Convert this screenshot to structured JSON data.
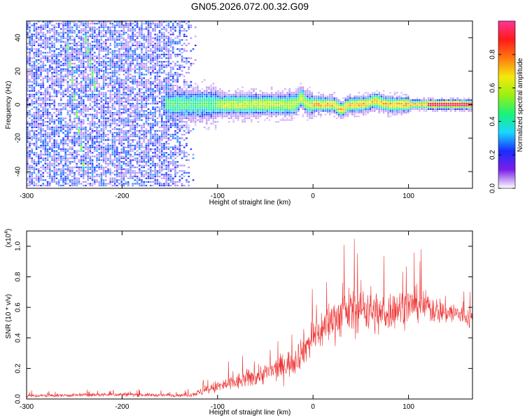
{
  "title": "GN05.2026.072.00.32.G09",
  "chart_data": [
    {
      "type": "heatmap",
      "xlabel": "Height of straight line (km)",
      "ylabel": "Frequency (Hz)",
      "xlim": [
        -300,
        167
      ],
      "ylim": [
        -50,
        50
      ],
      "xticks": [
        -300,
        -200,
        -100,
        0,
        100
      ],
      "yticks": [
        -40,
        -20,
        0,
        20,
        40
      ],
      "xtick_labels": [
        "-300",
        "-200",
        "-100",
        "0",
        "100"
      ],
      "ytick_labels": [
        "-40",
        "-20",
        "0",
        "20",
        "40"
      ],
      "colorbar": {
        "label": "Normalized spectral amplitude",
        "range": [
          0,
          1
        ],
        "ticks": [
          0.0,
          0.2,
          0.4,
          0.6,
          0.8
        ],
        "tick_labels": [
          "0.0",
          "0.2",
          "0.4",
          "0.6",
          "0.8"
        ],
        "colors": [
          "#ffffff",
          "#7b1fe8",
          "#1a2cff",
          "#19d7ff",
          "#19f27a",
          "#9af012",
          "#f5e80c",
          "#ff7a10",
          "#ff1a1a",
          "#ff3399"
        ]
      },
      "features": {
        "noise_region_x": [
          -300,
          -130
        ],
        "signal_band_x": [
          -150,
          167
        ],
        "signal_band_center_hz": 0,
        "diagonal_streaks": [
          {
            "x": [
              -258,
              -238
            ],
            "y": [
              40,
              -45
            ]
          },
          {
            "x": [
              -240,
              -228
            ],
            "y": [
              45,
              10
            ]
          }
        ],
        "perturbations_km": [
          -12,
          30,
          60
        ]
      }
    },
    {
      "type": "line",
      "xlabel": "Height of straight line (km)",
      "ylabel": "SNR (10 * v/v)",
      "yscale_label": "(x10^4)",
      "xlim": [
        -300,
        167
      ],
      "ylim": [
        0,
        1.1
      ],
      "xticks": [
        -300,
        -200,
        -100,
        0,
        100
      ],
      "yticks": [
        0.0,
        0.2,
        0.4,
        0.6,
        0.8,
        1.0
      ],
      "xtick_labels": [
        "-300",
        "-200",
        "-100",
        "0",
        "100"
      ],
      "ytick_labels": [
        "0.0",
        "0.2",
        "0.4",
        "0.6",
        "0.8",
        "1.0"
      ],
      "color": "#ee3333",
      "envelope": {
        "x": [
          -300,
          -250,
          -200,
          -160,
          -130,
          -115,
          -100,
          -80,
          -60,
          -40,
          -20,
          -10,
          0,
          10,
          20,
          40,
          55,
          70,
          90,
          110,
          130,
          150,
          167
        ],
        "mean": [
          0.02,
          0.025,
          0.03,
          0.025,
          0.025,
          0.05,
          0.08,
          0.11,
          0.15,
          0.19,
          0.25,
          0.33,
          0.4,
          0.46,
          0.52,
          0.58,
          0.6,
          0.55,
          0.6,
          0.62,
          0.58,
          0.56,
          0.52
        ],
        "amp": [
          0.02,
          0.02,
          0.025,
          0.02,
          0.02,
          0.05,
          0.08,
          0.1,
          0.12,
          0.14,
          0.17,
          0.2,
          0.22,
          0.24,
          0.25,
          0.27,
          0.3,
          0.25,
          0.22,
          0.2,
          0.16,
          0.14,
          0.12
        ]
      }
    }
  ]
}
